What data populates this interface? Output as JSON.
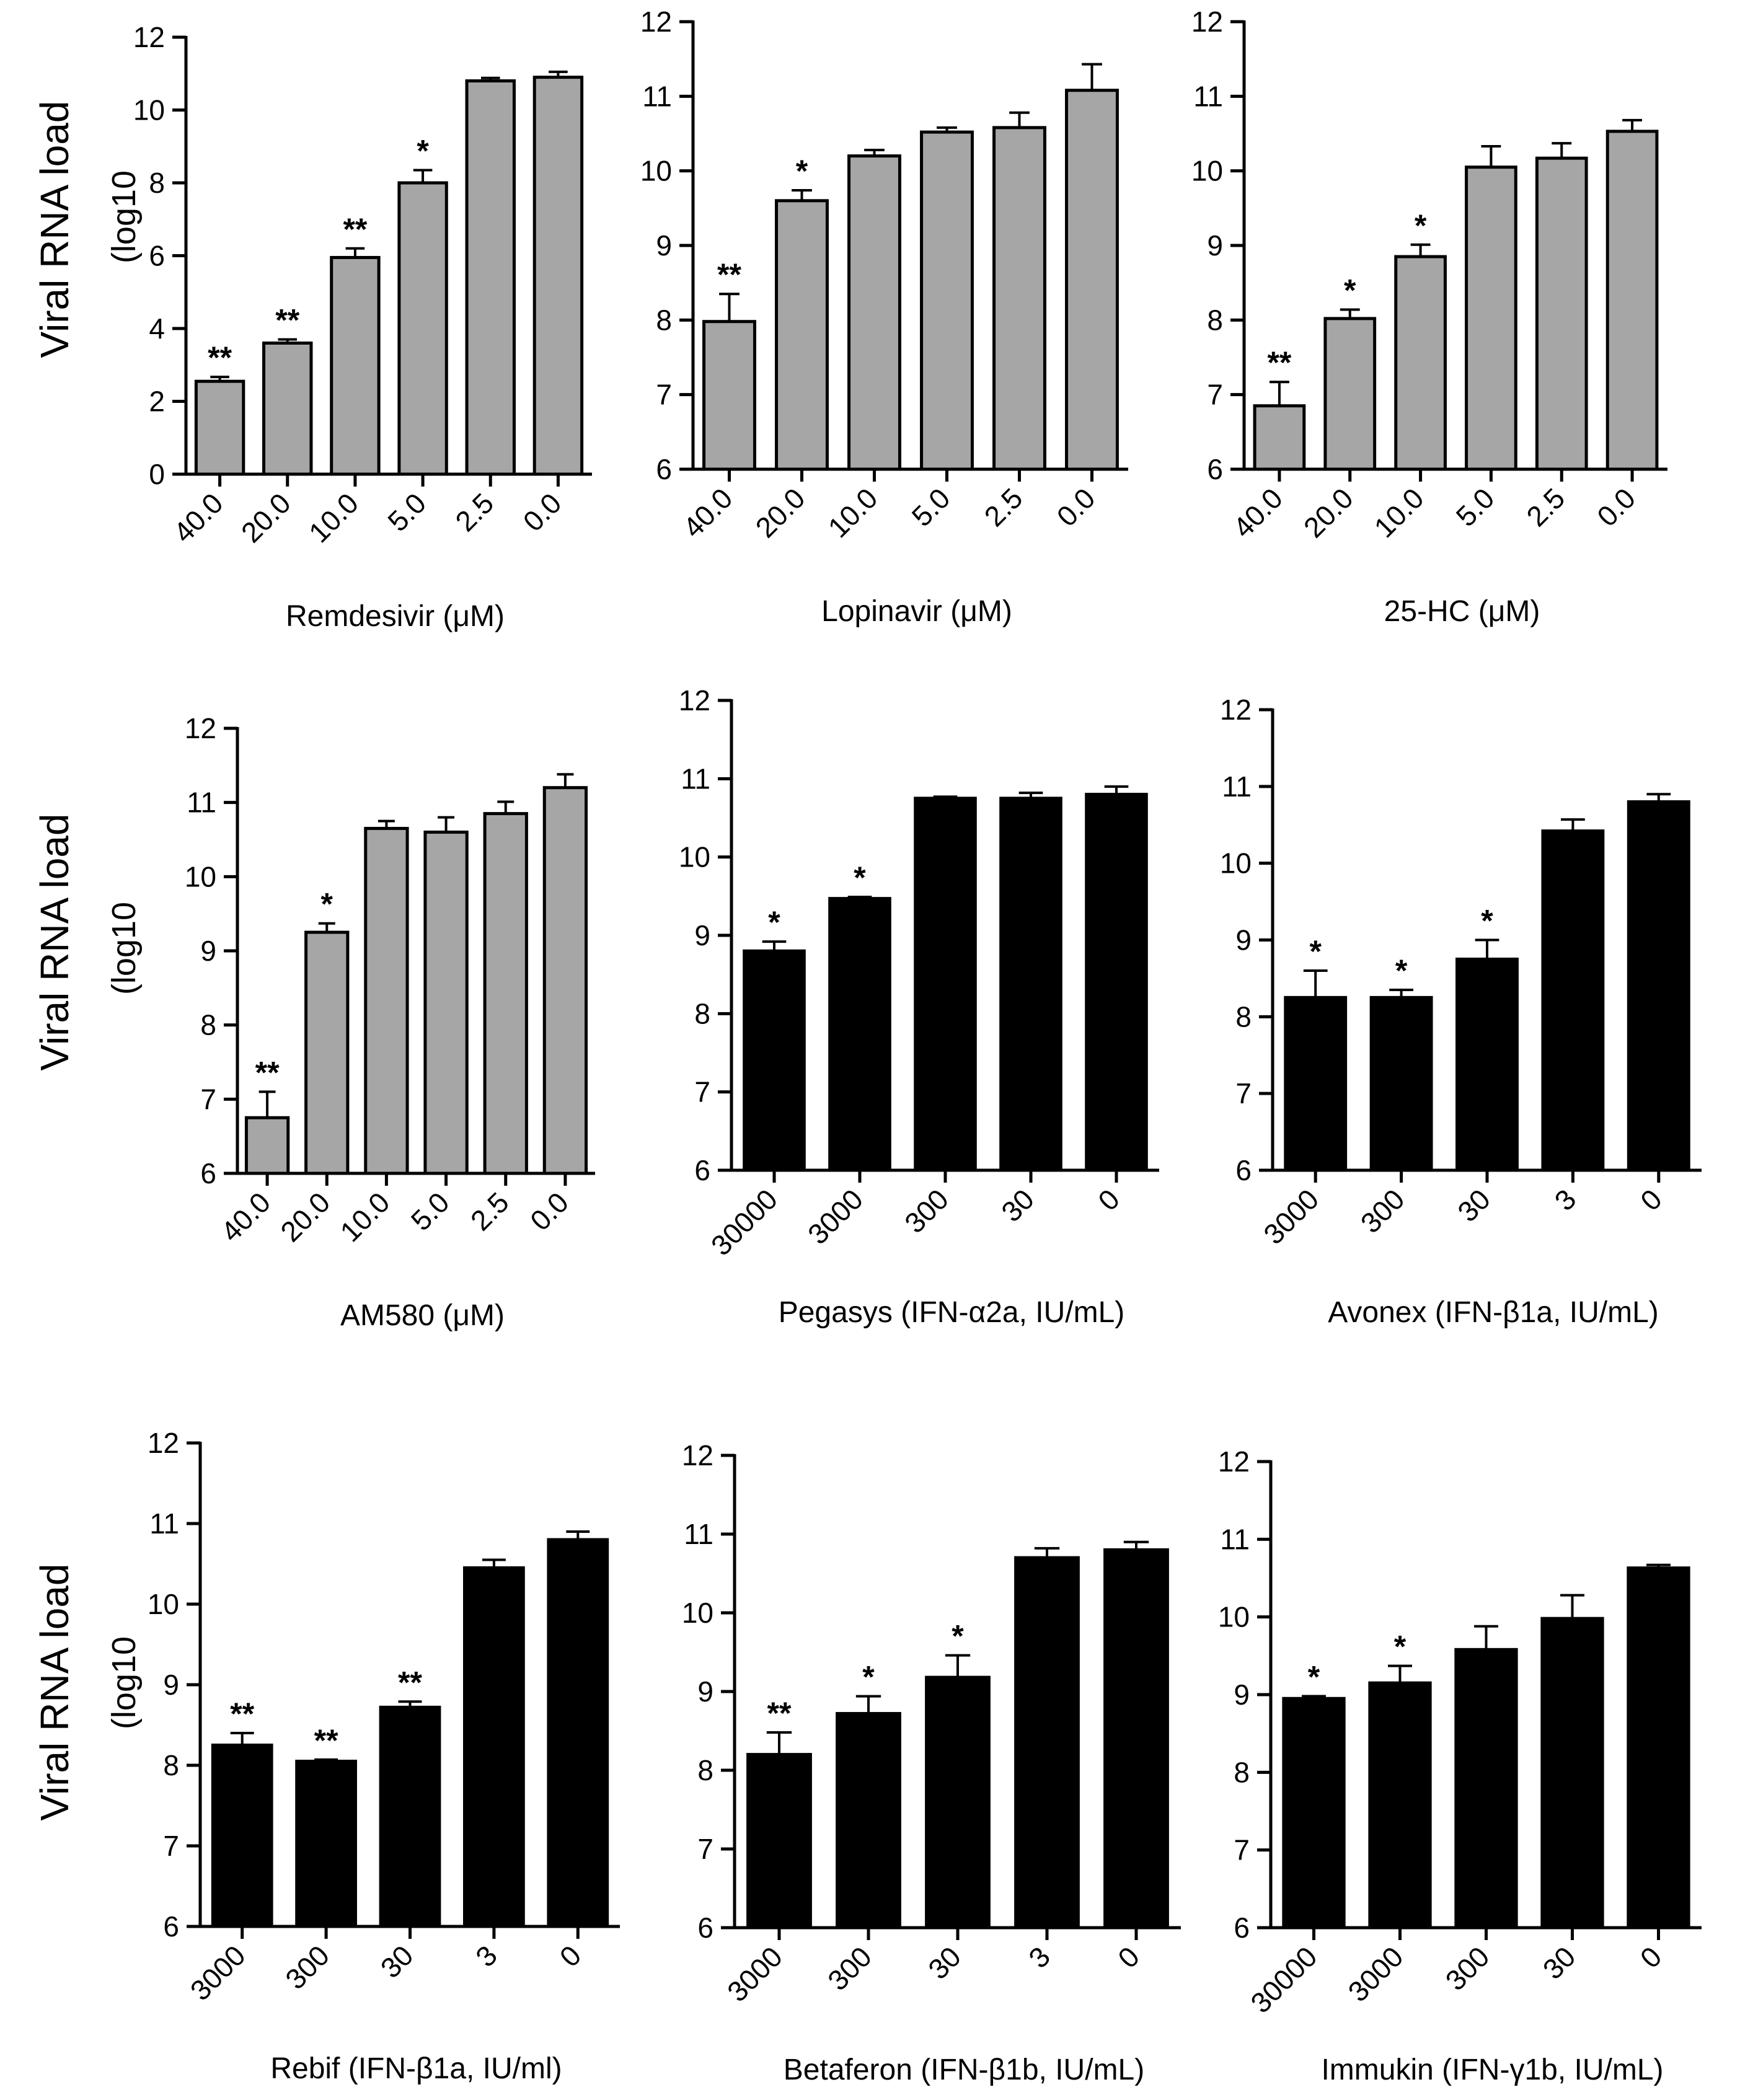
{
  "row_labels": {
    "main": "Viral RNA load",
    "sub": "(log10"
  },
  "chart_data": [
    {
      "type": "bar",
      "xlabel": "Remdesivir (μM)",
      "categories": [
        "40.0",
        "20.0",
        "10.0",
        "5.0",
        "2.5",
        "0.0"
      ],
      "values": [
        2.55,
        3.6,
        5.95,
        8.0,
        10.8,
        10.9
      ],
      "errors": [
        0.12,
        0.1,
        0.25,
        0.35,
        0.08,
        0.15
      ],
      "annotations": [
        "**",
        "**",
        "**",
        "*",
        "",
        ""
      ],
      "ylim": [
        0,
        12
      ],
      "yticks": [
        0,
        2,
        4,
        6,
        8,
        10,
        12
      ],
      "bar_color": "#a6a6a6"
    },
    {
      "type": "bar",
      "xlabel": "Lopinavir (μM)",
      "categories": [
        "40.0",
        "20.0",
        "10.0",
        "5.0",
        "2.5",
        "0.0"
      ],
      "values": [
        7.98,
        9.6,
        10.2,
        10.52,
        10.58,
        11.08
      ],
      "errors": [
        0.37,
        0.14,
        0.08,
        0.06,
        0.2,
        0.35
      ],
      "annotations": [
        "**",
        "*",
        "",
        "",
        "",
        ""
      ],
      "ylim": [
        6,
        12
      ],
      "yticks": [
        6,
        7,
        8,
        9,
        10,
        11,
        12
      ],
      "bar_color": "#a6a6a6"
    },
    {
      "type": "bar",
      "xlabel": "25-HC (μM)",
      "categories": [
        "40.0",
        "20.0",
        "10.0",
        "5.0",
        "2.5",
        "0.0"
      ],
      "values": [
        6.85,
        8.02,
        8.85,
        10.05,
        10.17,
        10.53
      ],
      "errors": [
        0.32,
        0.12,
        0.16,
        0.28,
        0.2,
        0.15
      ],
      "annotations": [
        "**",
        "*",
        "*",
        "",
        "",
        ""
      ],
      "ylim": [
        6,
        12
      ],
      "yticks": [
        6,
        7,
        8,
        9,
        10,
        11,
        12
      ],
      "bar_color": "#a6a6a6"
    },
    {
      "type": "bar",
      "xlabel": "AM580 (μM)",
      "categories": [
        "40.0",
        "20.0",
        "10.0",
        "5.0",
        "2.5",
        "0.0"
      ],
      "values": [
        6.75,
        9.25,
        10.65,
        10.6,
        10.85,
        11.2
      ],
      "errors": [
        0.35,
        0.12,
        0.1,
        0.2,
        0.16,
        0.18
      ],
      "annotations": [
        "**",
        "*",
        "",
        "",
        "",
        ""
      ],
      "ylim": [
        6,
        12
      ],
      "yticks": [
        6,
        7,
        8,
        9,
        10,
        11,
        12
      ],
      "bar_color": "#a6a6a6"
    },
    {
      "type": "bar",
      "xlabel": "Pegasys (IFN-α2a, IU/mL)",
      "categories": [
        "30000",
        "3000",
        "300",
        "30",
        "0"
      ],
      "values": [
        8.8,
        9.47,
        10.75,
        10.75,
        10.8
      ],
      "errors": [
        0.12,
        0.02,
        0.02,
        0.07,
        0.1
      ],
      "annotations": [
        "*",
        "*",
        "",
        "",
        ""
      ],
      "ylim": [
        6,
        12
      ],
      "yticks": [
        6,
        7,
        8,
        9,
        10,
        11,
        12
      ],
      "bar_color": "#000000"
    },
    {
      "type": "bar",
      "xlabel": "Avonex (IFN-β1a, IU/mL)",
      "categories": [
        "3000",
        "300",
        "30",
        "3",
        "0"
      ],
      "values": [
        8.25,
        8.25,
        8.75,
        10.42,
        10.8
      ],
      "errors": [
        0.35,
        0.1,
        0.25,
        0.15,
        0.1
      ],
      "annotations": [
        "*",
        "*",
        "*",
        "",
        ""
      ],
      "ylim": [
        6,
        12
      ],
      "yticks": [
        6,
        7,
        8,
        9,
        10,
        11,
        12
      ],
      "bar_color": "#000000"
    },
    {
      "type": "bar",
      "xlabel": "Rebif (IFN-β1a, IU/ml)",
      "categories": [
        "3000",
        "300",
        "30",
        "3",
        "0"
      ],
      "values": [
        8.25,
        8.05,
        8.72,
        10.45,
        10.8
      ],
      "errors": [
        0.15,
        0.02,
        0.07,
        0.1,
        0.1
      ],
      "annotations": [
        "**",
        "**",
        "**",
        "",
        ""
      ],
      "ylim": [
        6,
        12
      ],
      "yticks": [
        6,
        7,
        8,
        9,
        10,
        11,
        12
      ],
      "bar_color": "#000000"
    },
    {
      "type": "bar",
      "xlabel": "Betaferon (IFN-β1b, IU/mL)",
      "categories": [
        "3000",
        "300",
        "30",
        "3",
        "0"
      ],
      "values": [
        8.2,
        8.72,
        9.18,
        10.7,
        10.8
      ],
      "errors": [
        0.28,
        0.22,
        0.28,
        0.12,
        0.1
      ],
      "annotations": [
        "**",
        "*",
        "*",
        "",
        ""
      ],
      "ylim": [
        6,
        12
      ],
      "yticks": [
        6,
        7,
        8,
        9,
        10,
        11,
        12
      ],
      "bar_color": "#000000"
    },
    {
      "type": "bar",
      "xlabel": "Immukin (IFN-γ1b, IU/mL)",
      "categories": [
        "30000",
        "3000",
        "300",
        "30",
        "0"
      ],
      "values": [
        8.95,
        9.15,
        9.58,
        9.98,
        10.63
      ],
      "errors": [
        0.03,
        0.22,
        0.3,
        0.3,
        0.04
      ],
      "annotations": [
        "*",
        "*",
        "",
        "",
        ""
      ],
      "ylim": [
        6,
        12
      ],
      "yticks": [
        6,
        7,
        8,
        9,
        10,
        11,
        12
      ],
      "bar_color": "#000000"
    }
  ]
}
